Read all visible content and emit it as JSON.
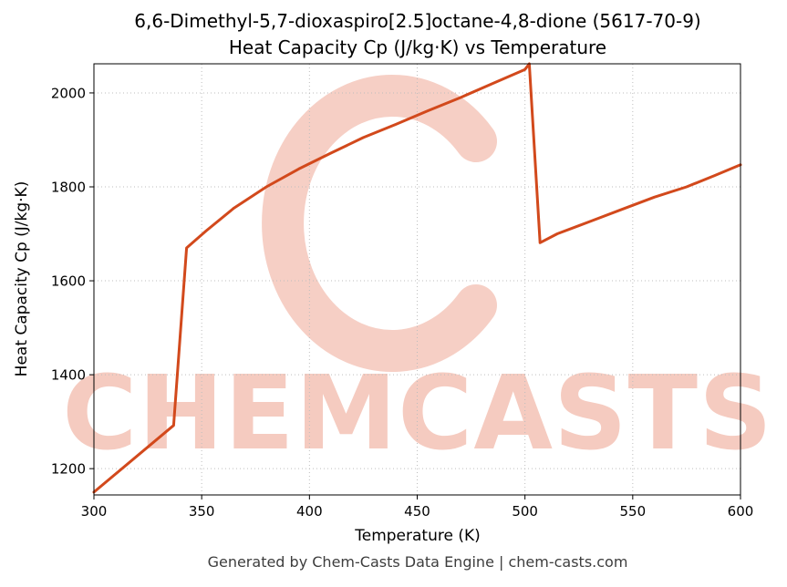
{
  "title": {
    "line1": "6,6-Dimethyl-5,7-dioxaspiro[2.5]octane-4,8-dione (5617-70-9)",
    "line2": "Heat Capacity Cp (J/kg·K) vs Temperature"
  },
  "axes": {
    "xlabel": "Temperature (K)",
    "ylabel": "Heat Capacity Cp (J/kg·K)"
  },
  "watermark": {
    "text": "CHEMCASTS",
    "logo": "c-swoosh-logo",
    "color": "#e06040"
  },
  "footer": {
    "text": "Generated by Chem-Casts Data Engine | chem-casts.com"
  },
  "chart_data": {
    "type": "line",
    "title": "6,6-Dimethyl-5,7-dioxaspiro[2.5]octane-4,8-dione (5617-70-9) — Heat Capacity Cp (J/kg·K) vs Temperature",
    "xlabel": "Temperature (K)",
    "ylabel": "Heat Capacity Cp (J/kg·K)",
    "xlim": [
      300,
      600
    ],
    "ylim": [
      1144,
      2062
    ],
    "xticks": [
      300,
      350,
      400,
      450,
      500,
      550,
      600
    ],
    "yticks": [
      1200,
      1400,
      1600,
      1800,
      2000
    ],
    "grid": true,
    "legend": false,
    "line_color": "#d2491c",
    "series": [
      {
        "name": "Cp",
        "points": [
          [
            300,
            1150
          ],
          [
            337,
            1292
          ],
          [
            343,
            1670
          ],
          [
            352,
            1706
          ],
          [
            365,
            1755
          ],
          [
            380,
            1800
          ],
          [
            395,
            1838
          ],
          [
            410,
            1872
          ],
          [
            425,
            1905
          ],
          [
            440,
            1933
          ],
          [
            455,
            1962
          ],
          [
            470,
            1990
          ],
          [
            485,
            2020
          ],
          [
            500,
            2050
          ],
          [
            502,
            2062
          ],
          [
            507,
            1681
          ],
          [
            515,
            1700
          ],
          [
            530,
            1726
          ],
          [
            545,
            1752
          ],
          [
            560,
            1778
          ],
          [
            575,
            1800
          ],
          [
            588,
            1824
          ],
          [
            600,
            1847
          ]
        ]
      }
    ]
  }
}
